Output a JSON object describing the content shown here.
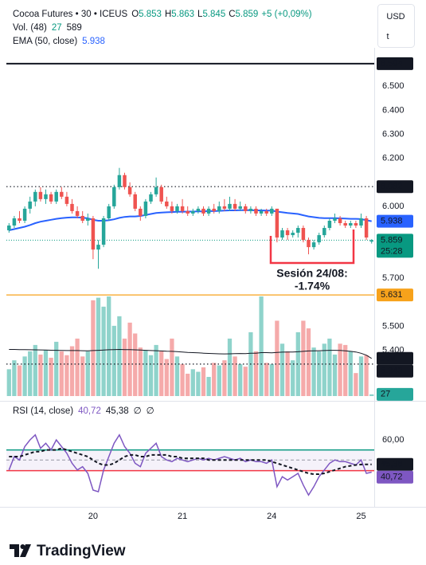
{
  "chart_data": {
    "type": "candlestick",
    "header": {
      "symbol": "Cocoa Futures • 30 • ICEUS",
      "o": "O",
      "h": "H",
      "l": "L",
      "c": "C",
      "change": "+5 (+0,09%)"
    },
    "currency": [
      "USD",
      "t"
    ],
    "brand": "TradingView",
    "categories": [
      null,
      null,
      null,
      null,
      null,
      null,
      null,
      null,
      null,
      null,
      null,
      null,
      null,
      null,
      null,
      null,
      "20",
      null,
      null,
      null,
      null,
      null,
      null,
      null,
      null,
      null,
      null,
      null,
      null,
      null,
      null,
      null,
      null,
      "21",
      null,
      null,
      null,
      null,
      null,
      null,
      null,
      null,
      null,
      null,
      null,
      null,
      null,
      null,
      null,
      null,
      "24",
      null,
      null,
      null,
      null,
      null,
      null,
      null,
      null,
      null,
      null,
      null,
      null,
      null,
      null,
      null,
      null,
      "25",
      null,
      null
    ],
    "open": [
      5.9,
      5.92,
      5.95,
      5.94,
      5.99,
      6.02,
      6.06,
      6.03,
      6.05,
      6.02,
      6.06,
      6.04,
      6.01,
      5.98,
      5.96,
      5.94,
      5.95,
      5.82,
      5.84,
      5.95,
      6.0,
      6.08,
      6.13,
      6.08,
      6.05,
      5.99,
      5.96,
      6.02,
      6.05,
      6.08,
      6.02,
      6.0,
      5.98,
      6.0,
      5.98,
      5.97,
      5.98,
      5.99,
      5.97,
      5.99,
      5.98,
      6.0,
      5.99,
      6.01,
      5.99,
      6.0,
      5.98,
      5.99,
      5.97,
      5.98,
      5.97,
      5.99,
      5.87,
      5.9,
      5.88,
      5.89,
      5.91,
      5.86,
      5.83,
      5.85,
      5.88,
      5.91,
      5.94,
      5.95,
      5.93,
      5.92,
      5.93,
      5.92,
      5.95,
      5.853
    ],
    "high": [
      5.93,
      5.96,
      5.98,
      6.0,
      6.04,
      6.07,
      6.08,
      6.07,
      6.06,
      6.07,
      6.08,
      6.06,
      6.03,
      6.0,
      5.98,
      5.97,
      5.96,
      5.86,
      5.96,
      6.01,
      6.09,
      6.16,
      6.14,
      6.1,
      6.06,
      6.0,
      6.03,
      6.06,
      6.12,
      6.09,
      6.04,
      6.02,
      6.01,
      6.03,
      6.0,
      5.99,
      6.0,
      6.0,
      6.0,
      6.01,
      6.02,
      6.03,
      6.04,
      6.03,
      6.02,
      6.01,
      6.0,
      6.0,
      5.99,
      5.99,
      6.0,
      5.99,
      5.91,
      5.91,
      5.9,
      5.92,
      5.92,
      5.87,
      5.86,
      5.89,
      5.92,
      5.95,
      5.97,
      5.96,
      5.94,
      5.94,
      5.94,
      5.97,
      5.96,
      5.863
    ],
    "low": [
      5.89,
      5.91,
      5.93,
      5.93,
      5.97,
      6.0,
      6.02,
      6.01,
      6.01,
      6.01,
      6.03,
      6.0,
      5.97,
      5.95,
      5.93,
      5.92,
      5.78,
      5.74,
      5.83,
      5.94,
      5.99,
      6.07,
      6.07,
      6.04,
      5.98,
      5.94,
      5.95,
      6.01,
      6.04,
      6.01,
      5.99,
      5.97,
      5.97,
      5.97,
      5.96,
      5.96,
      5.97,
      5.96,
      5.96,
      5.97,
      5.97,
      5.98,
      5.98,
      5.98,
      5.98,
      5.97,
      5.97,
      5.96,
      5.96,
      5.96,
      5.96,
      5.85,
      5.86,
      5.86,
      5.87,
      5.87,
      5.85,
      5.8,
      5.82,
      5.84,
      5.87,
      5.9,
      5.93,
      5.92,
      5.91,
      5.91,
      5.91,
      5.91,
      5.86,
      5.845
    ],
    "close": [
      5.92,
      5.95,
      5.94,
      5.99,
      6.02,
      6.06,
      6.03,
      6.05,
      6.02,
      6.06,
      6.04,
      6.01,
      5.98,
      5.96,
      5.94,
      5.95,
      5.82,
      5.84,
      5.95,
      6.0,
      6.08,
      6.13,
      6.08,
      6.05,
      5.99,
      5.96,
      6.02,
      6.05,
      6.08,
      6.02,
      6.0,
      5.98,
      6.0,
      5.98,
      5.97,
      5.98,
      5.99,
      5.97,
      5.99,
      5.98,
      6.0,
      5.99,
      6.01,
      5.99,
      6.0,
      5.98,
      5.99,
      5.97,
      5.98,
      5.97,
      5.99,
      5.87,
      5.9,
      5.88,
      5.89,
      5.91,
      5.86,
      5.83,
      5.85,
      5.88,
      5.91,
      5.94,
      5.95,
      5.93,
      5.92,
      5.93,
      5.92,
      5.95,
      5.87,
      5.859
    ],
    "up_color": "#26a69a",
    "down_color": "#ef5350",
    "ylim": [
      5.2,
      6.66
    ],
    "yticks": [
      {
        "value": 6.5,
        "label": "6.500"
      },
      {
        "value": 6.4,
        "label": "6.400"
      },
      {
        "value": 6.3,
        "label": "6.300"
      },
      {
        "value": 6.2,
        "label": "6.200"
      },
      {
        "value": 6.0,
        "label": "6.000"
      },
      {
        "value": 5.7,
        "label": "5.700"
      },
      {
        "value": 5.5,
        "label": "5.500"
      },
      {
        "value": 5.4,
        "label": "5.400"
      }
    ],
    "grid": false,
    "ema": {
      "name": "EMA (50, close)",
      "color": "#2962ff",
      "values": [
        5.9,
        5.905,
        5.91,
        5.915,
        5.922,
        5.93,
        5.936,
        5.94,
        5.944,
        5.948,
        5.951,
        5.953,
        5.954,
        5.954,
        5.953,
        5.95,
        5.944,
        5.94,
        5.94,
        5.942,
        5.946,
        5.952,
        5.956,
        5.958,
        5.958,
        5.96,
        5.964,
        5.968,
        5.972,
        5.974,
        5.975,
        5.976,
        5.977,
        5.977,
        5.978,
        5.978,
        5.979,
        5.979,
        5.98,
        5.98,
        5.981,
        5.982,
        5.983,
        5.983,
        5.984,
        5.984,
        5.984,
        5.983,
        5.983,
        5.982,
        5.982,
        5.978,
        5.975,
        5.972,
        5.97,
        5.968,
        5.963,
        5.958,
        5.955,
        5.952,
        5.951,
        5.951,
        5.951,
        5.95,
        5.949,
        5.948,
        5.948,
        5.947,
        5.942,
        5.938
      ],
      "last": {
        "value": 5.938,
        "label": "5.938"
      }
    },
    "price_lines": [
      {
        "value": 6.594,
        "label": "6.594",
        "color": "#131722",
        "style": "solid"
      },
      {
        "value": 6.082,
        "label": "6.082",
        "color": "#131722",
        "style": "dotted"
      },
      {
        "value": 5.631,
        "label": "5.631",
        "color": "#f7a21b",
        "style": "solid"
      },
      {
        "value": 5.343,
        "label": "5.343",
        "color": "#131722",
        "style": "dotted"
      }
    ],
    "last_price": {
      "value": 5.859,
      "label": "5.859",
      "countdown": "25:28",
      "color": "#089981"
    },
    "volume": {
      "name": "Vol. (48)",
      "up_color": "#8fd3cb",
      "down_color": "#f5aaaa",
      "ma_color": "#131722",
      "values": [
        420,
        560,
        480,
        620,
        700,
        800,
        650,
        720,
        600,
        850,
        700,
        640,
        780,
        900,
        620,
        700,
        1500,
        1540,
        1400,
        1560,
        1100,
        1250,
        900,
        1150,
        980,
        760,
        720,
        640,
        800,
        700,
        580,
        900,
        620,
        500,
        350,
        420,
        380,
        450,
        300,
        520,
        480,
        560,
        900,
        620,
        500,
        460,
        1000,
        700,
        1560,
        520,
        500,
        1180,
        820,
        700,
        560,
        1000,
        1180,
        1060,
        760,
        700,
        820,
        900,
        650,
        820,
        800,
        700,
        360,
        620,
        640,
        27
      ],
      "ma": [
        730,
        730,
        728,
        726,
        725,
        724,
        722,
        720,
        718,
        716,
        714,
        712,
        712,
        712,
        710,
        708,
        712,
        716,
        720,
        725,
        728,
        730,
        728,
        726,
        724,
        720,
        716,
        712,
        710,
        706,
        702,
        700,
        696,
        690,
        684,
        680,
        676,
        672,
        668,
        664,
        662,
        660,
        662,
        664,
        666,
        665,
        670,
        672,
        680,
        680,
        678,
        684,
        688,
        690,
        690,
        694,
        700,
        706,
        708,
        710,
        712,
        716,
        716,
        714,
        708,
        700,
        690,
        670,
        640,
        589
      ]
    },
    "annotation": {
      "title": "Sesión 24/08:",
      "value": "-1.74%",
      "color": "#f23645"
    },
    "rsi": {
      "title": "RSI (14, close)",
      "ylim": [
        20,
        80
      ],
      "yticks": [
        {
          "value": 60,
          "label": "60,00"
        }
      ],
      "upper_band": 54,
      "lower_band": 41.6,
      "middle": 48,
      "na_labels": [
        "∅",
        "∅"
      ],
      "series": [
        {
          "color": "#7e57c2",
          "style": "solid",
          "values": [
            42,
            50,
            48,
            56,
            60,
            63,
            55,
            58,
            54,
            60,
            56,
            52,
            46,
            42,
            44,
            40,
            30,
            29,
            42,
            50,
            58,
            63,
            56,
            52,
            46,
            44,
            52,
            55,
            58,
            50,
            48,
            47,
            49,
            48,
            47,
            48,
            49,
            48,
            49,
            48,
            49,
            50,
            49,
            48,
            49,
            47,
            48,
            47,
            47,
            46,
            48,
            32,
            38,
            36,
            38,
            40,
            33,
            27,
            32,
            38,
            42,
            46,
            48,
            47,
            47,
            46,
            45,
            48,
            40,
            40.72
          ],
          "last": {
            "value": 40.72,
            "label": "40,72"
          }
        },
        {
          "color": "#131722",
          "style": "dashed",
          "values": [
            50,
            50,
            50,
            51,
            52,
            53,
            53,
            54,
            54,
            54,
            55,
            54,
            53,
            52,
            51,
            50,
            48,
            46,
            45,
            45,
            46,
            48,
            50,
            51,
            51,
            50,
            50,
            51,
            51,
            51,
            51,
            50,
            50,
            49,
            49,
            49,
            49,
            49,
            48,
            48,
            48,
            48,
            48,
            48,
            48,
            48,
            48,
            48,
            48,
            48,
            47,
            46,
            45,
            44,
            43,
            42,
            41,
            40,
            39.5,
            39.5,
            40,
            41,
            42,
            43,
            44,
            44.5,
            45,
            45.3,
            45.4,
            45.38
          ],
          "last": {
            "value": 45.38,
            "label": "45,38"
          }
        }
      ]
    }
  }
}
